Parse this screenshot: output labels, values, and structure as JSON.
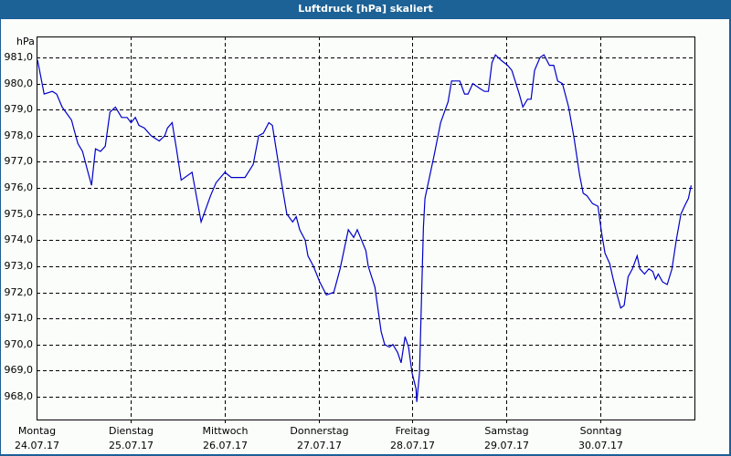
{
  "window": {
    "title": "Luftdruck [hPa] skaliert"
  },
  "chart_data": {
    "type": "line",
    "title": "Luftdruck [hPa] skaliert",
    "xlabel": "",
    "ylabel": "hPa",
    "ylim": [
      967.2,
      981.8
    ],
    "yticks": [
      "981,0",
      "980,0",
      "979,0",
      "978,0",
      "977,0",
      "976,0",
      "975,0",
      "974,0",
      "973,0",
      "972,0",
      "971,0",
      "970,0",
      "969,0",
      "968,0"
    ],
    "ytick_values": [
      981,
      980,
      979,
      978,
      977,
      976,
      975,
      974,
      973,
      972,
      971,
      970,
      969,
      968
    ],
    "grid": true,
    "legend": null,
    "x_categories": [
      {
        "day": "Montag",
        "date": "24.07.17"
      },
      {
        "day": "Dienstag",
        "date": "25.07.17"
      },
      {
        "day": "Mittwoch",
        "date": "26.07.17"
      },
      {
        "day": "Donnerstag",
        "date": "27.07.17"
      },
      {
        "day": "Freitag",
        "date": "28.07.17"
      },
      {
        "day": "Samstag",
        "date": "29.07.17"
      },
      {
        "day": "Sonntag",
        "date": "30.07.17"
      }
    ],
    "x_unit": "hours since Montag 24.07.17 00:00",
    "xlim_hours": [
      0,
      168
    ],
    "series": [
      {
        "name": "Luftdruck",
        "color": "#0000c8",
        "points": [
          [
            0.2,
            980.9
          ],
          [
            1.9,
            979.6
          ],
          [
            4.0,
            979.7
          ],
          [
            5.1,
            979.6
          ],
          [
            6.5,
            979.1
          ],
          [
            8.9,
            978.6
          ],
          [
            9.6,
            978.2
          ],
          [
            10.5,
            977.7
          ],
          [
            11.7,
            977.4
          ],
          [
            13.1,
            976.6
          ],
          [
            14.0,
            976.1
          ],
          [
            15.0,
            977.5
          ],
          [
            16.3,
            977.4
          ],
          [
            17.5,
            977.6
          ],
          [
            18.7,
            978.9
          ],
          [
            20.1,
            979.1
          ],
          [
            21.7,
            978.7
          ],
          [
            23.1,
            978.7
          ],
          [
            24.1,
            978.5
          ],
          [
            25.2,
            978.7
          ],
          [
            26.1,
            978.4
          ],
          [
            27.5,
            978.3
          ],
          [
            29.2,
            978.0
          ],
          [
            31.3,
            977.8
          ],
          [
            32.7,
            978.0
          ],
          [
            33.4,
            978.3
          ],
          [
            34.6,
            978.5
          ],
          [
            35.7,
            977.5
          ],
          [
            36.9,
            976.3
          ],
          [
            39.7,
            976.6
          ],
          [
            42.0,
            974.7
          ],
          [
            44.4,
            975.7
          ],
          [
            45.8,
            976.2
          ],
          [
            48.1,
            976.6
          ],
          [
            49.7,
            976.4
          ],
          [
            53.2,
            976.4
          ],
          [
            55.3,
            976.9
          ],
          [
            56.7,
            978.0
          ],
          [
            57.9,
            978.1
          ],
          [
            59.3,
            978.5
          ],
          [
            60.2,
            978.4
          ],
          [
            62.1,
            976.6
          ],
          [
            63.9,
            975.0
          ],
          [
            65.4,
            974.7
          ],
          [
            66.3,
            974.9
          ],
          [
            67.2,
            974.4
          ],
          [
            68.6,
            974.0
          ],
          [
            69.3,
            973.4
          ],
          [
            70.7,
            973.0
          ],
          [
            72.3,
            972.4
          ],
          [
            74.0,
            971.9
          ],
          [
            75.9,
            972.0
          ],
          [
            77.5,
            972.9
          ],
          [
            79.6,
            974.4
          ],
          [
            81.0,
            974.1
          ],
          [
            81.9,
            974.4
          ],
          [
            84.1,
            973.6
          ],
          [
            84.7,
            973.0
          ],
          [
            86.4,
            972.2
          ],
          [
            88.0,
            970.5
          ],
          [
            88.9,
            970.0
          ],
          [
            90.1,
            969.9
          ],
          [
            91.0,
            970.0
          ],
          [
            92.2,
            969.7
          ],
          [
            93.1,
            969.3
          ],
          [
            94.1,
            970.3
          ],
          [
            95.0,
            969.9
          ],
          [
            95.9,
            968.9
          ],
          [
            96.9,
            968.3
          ],
          [
            97.1,
            967.8
          ],
          [
            97.8,
            968.9
          ],
          [
            98.8,
            974.5
          ],
          [
            99.2,
            975.6
          ],
          [
            101.6,
            977.3
          ],
          [
            103.2,
            978.5
          ],
          [
            105.1,
            979.3
          ],
          [
            106.0,
            980.1
          ],
          [
            108.1,
            980.1
          ],
          [
            109.3,
            979.6
          ],
          [
            110.2,
            979.6
          ],
          [
            111.4,
            980.0
          ],
          [
            113.3,
            979.8
          ],
          [
            114.4,
            979.7
          ],
          [
            115.4,
            979.7
          ],
          [
            116.3,
            980.8
          ],
          [
            117.2,
            981.1
          ],
          [
            118.6,
            980.9
          ],
          [
            120.3,
            980.7
          ],
          [
            121.4,
            980.5
          ],
          [
            123.3,
            979.6
          ],
          [
            124.2,
            979.1
          ],
          [
            125.4,
            979.4
          ],
          [
            126.3,
            979.4
          ],
          [
            127.2,
            980.5
          ],
          [
            128.6,
            981.0
          ],
          [
            129.6,
            981.1
          ],
          [
            131.0,
            980.7
          ],
          [
            132.1,
            980.7
          ],
          [
            133.1,
            980.1
          ],
          [
            134.3,
            980.0
          ],
          [
            135.9,
            979.1
          ],
          [
            137.3,
            977.9
          ],
          [
            138.7,
            976.5
          ],
          [
            139.6,
            975.8
          ],
          [
            140.6,
            975.7
          ],
          [
            142.0,
            975.4
          ],
          [
            143.4,
            975.3
          ],
          [
            144.3,
            974.3
          ],
          [
            145.2,
            973.5
          ],
          [
            146.4,
            973.1
          ],
          [
            147.3,
            972.5
          ],
          [
            148.3,
            971.9
          ],
          [
            149.2,
            971.4
          ],
          [
            150.1,
            971.5
          ],
          [
            151.1,
            972.6
          ],
          [
            152.2,
            972.9
          ],
          [
            153.4,
            973.4
          ],
          [
            154.1,
            972.9
          ],
          [
            155.3,
            972.7
          ],
          [
            156.4,
            972.9
          ],
          [
            157.4,
            972.8
          ],
          [
            158.1,
            972.5
          ],
          [
            158.8,
            972.7
          ],
          [
            159.9,
            972.4
          ],
          [
            161.1,
            972.3
          ],
          [
            162.3,
            972.9
          ],
          [
            163.4,
            974.0
          ],
          [
            164.6,
            975.0
          ],
          [
            165.5,
            975.3
          ],
          [
            166.5,
            975.6
          ],
          [
            167.2,
            976.1
          ]
        ]
      }
    ]
  }
}
